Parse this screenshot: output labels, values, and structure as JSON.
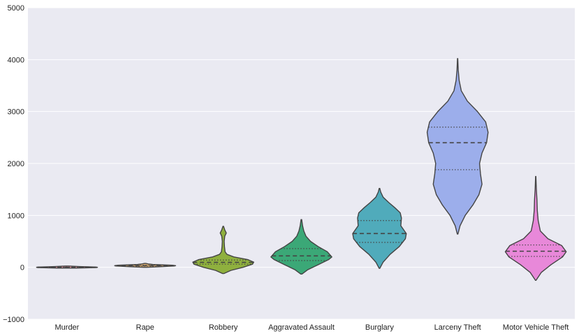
{
  "chart_data": {
    "type": "violin",
    "title": "",
    "xlabel": "",
    "ylabel": "",
    "ylim": [
      -1000,
      5000
    ],
    "yticks": [
      -1000,
      0,
      1000,
      2000,
      3000,
      4000,
      5000
    ],
    "grid": true,
    "categories": [
      "Murder",
      "Rape",
      "Robbery",
      "Aggravated Assault",
      "Burglary",
      "Larceny Theft",
      "Motor Vehicle Theft"
    ],
    "series": [
      {
        "category": "Murder",
        "color": "#ea96a3",
        "min": -15,
        "max": 25,
        "q1": -5,
        "median": 0,
        "q3": 5,
        "profile": [
          [
            -15,
            0.3
          ],
          [
            -5,
            0.96
          ],
          [
            0,
            1.0
          ],
          [
            5,
            0.95
          ],
          [
            15,
            0.4
          ],
          [
            25,
            0.05
          ]
        ]
      },
      {
        "category": "Rape",
        "color": "#d4a86e",
        "min": 0,
        "max": 75,
        "q1": 25,
        "median": 32,
        "q3": 40,
        "profile": [
          [
            0,
            0.05
          ],
          [
            12,
            0.5
          ],
          [
            25,
            0.95
          ],
          [
            32,
            1.0
          ],
          [
            40,
            0.9
          ],
          [
            55,
            0.25
          ],
          [
            65,
            0.1
          ],
          [
            75,
            0.02
          ]
        ]
      },
      {
        "category": "Robbery",
        "color": "#8fb03e",
        "min": -120,
        "max": 790,
        "q1": 60,
        "median": 95,
        "q3": 140,
        "profile": [
          [
            -120,
            0.02
          ],
          [
            -60,
            0.25
          ],
          [
            0,
            0.65
          ],
          [
            60,
            0.96
          ],
          [
            100,
            1.0
          ],
          [
            150,
            0.8
          ],
          [
            200,
            0.35
          ],
          [
            250,
            0.12
          ],
          [
            300,
            0.06
          ],
          [
            400,
            0.04
          ],
          [
            500,
            0.03
          ],
          [
            600,
            0.05
          ],
          [
            660,
            0.1
          ],
          [
            720,
            0.05
          ],
          [
            790,
            0.01
          ]
        ]
      },
      {
        "category": "Aggravated Assault",
        "color": "#3ba877",
        "min": -130,
        "max": 920,
        "q1": 130,
        "median": 220,
        "q3": 360,
        "profile": [
          [
            -130,
            0.02
          ],
          [
            -50,
            0.2
          ],
          [
            50,
            0.55
          ],
          [
            150,
            0.9
          ],
          [
            200,
            1.0
          ],
          [
            300,
            0.85
          ],
          [
            400,
            0.55
          ],
          [
            500,
            0.3
          ],
          [
            600,
            0.15
          ],
          [
            700,
            0.08
          ],
          [
            800,
            0.04
          ],
          [
            920,
            0.01
          ]
        ]
      },
      {
        "category": "Burglary",
        "color": "#50abbb",
        "min": -20,
        "max": 1520,
        "q1": 480,
        "median": 650,
        "q3": 900,
        "profile": [
          [
            -20,
            0.01
          ],
          [
            100,
            0.12
          ],
          [
            250,
            0.35
          ],
          [
            400,
            0.65
          ],
          [
            550,
            0.85
          ],
          [
            650,
            0.88
          ],
          [
            800,
            0.7
          ],
          [
            950,
            0.72
          ],
          [
            1050,
            0.68
          ],
          [
            1150,
            0.5
          ],
          [
            1250,
            0.3
          ],
          [
            1350,
            0.12
          ],
          [
            1450,
            0.04
          ],
          [
            1520,
            0.01
          ]
        ]
      },
      {
        "category": "Larceny Theft",
        "color": "#9caeeb",
        "min": 640,
        "max": 4020,
        "q1": 1880,
        "median": 2400,
        "q3": 2700,
        "profile": [
          [
            640,
            0.01
          ],
          [
            800,
            0.08
          ],
          [
            1000,
            0.25
          ],
          [
            1200,
            0.5
          ],
          [
            1400,
            0.7
          ],
          [
            1600,
            0.8
          ],
          [
            1800,
            0.75
          ],
          [
            2000,
            0.72
          ],
          [
            2200,
            0.8
          ],
          [
            2400,
            0.95
          ],
          [
            2600,
            1.0
          ],
          [
            2800,
            0.92
          ],
          [
            3000,
            0.65
          ],
          [
            3200,
            0.32
          ],
          [
            3400,
            0.12
          ],
          [
            3600,
            0.05
          ],
          [
            3800,
            0.02
          ],
          [
            4020,
            0.005
          ]
        ]
      },
      {
        "category": "Motor Vehicle Theft",
        "color": "#e888d9",
        "min": -250,
        "max": 1750,
        "q1": 210,
        "median": 310,
        "q3": 430,
        "profile": [
          [
            -250,
            0.01
          ],
          [
            -100,
            0.18
          ],
          [
            50,
            0.5
          ],
          [
            200,
            0.88
          ],
          [
            300,
            1.0
          ],
          [
            420,
            0.85
          ],
          [
            550,
            0.4
          ],
          [
            700,
            0.15
          ],
          [
            900,
            0.08
          ],
          [
            1100,
            0.05
          ],
          [
            1300,
            0.04
          ],
          [
            1500,
            0.02
          ],
          [
            1750,
            0.005
          ]
        ]
      }
    ]
  }
}
